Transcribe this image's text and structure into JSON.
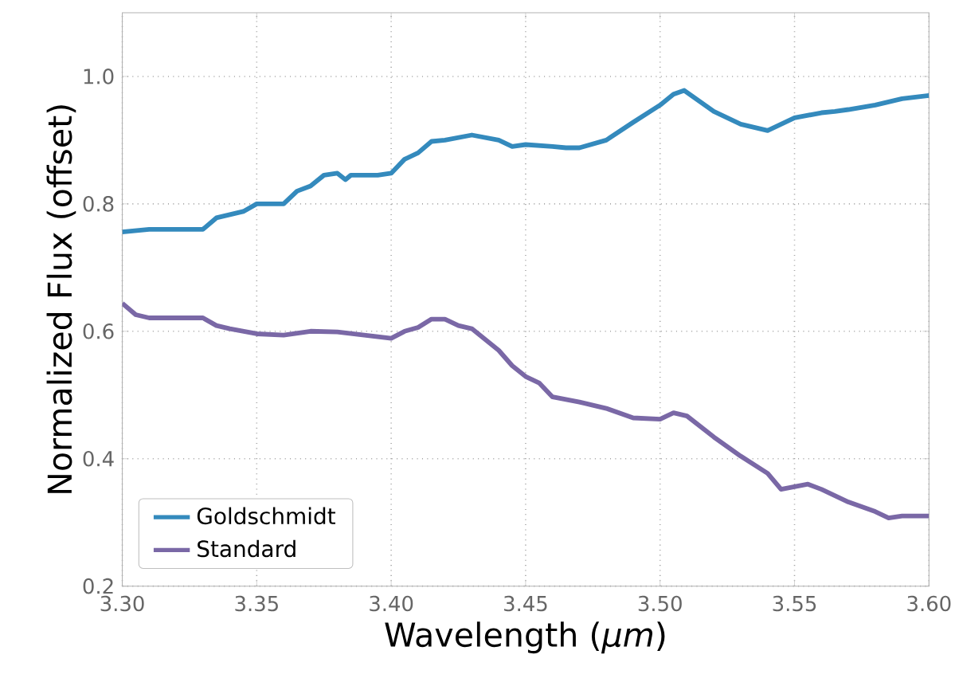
{
  "chart_data": {
    "type": "line",
    "xlabel": "Wavelength (*μm*)",
    "ylabel": "Normalized Flux (offset)",
    "xlim": [
      3.3,
      3.6
    ],
    "ylim": [
      0.2,
      1.1
    ],
    "xticks": [
      {
        "value": 3.3,
        "label": "3.30"
      },
      {
        "value": 3.35,
        "label": "3.35"
      },
      {
        "value": 3.4,
        "label": "3.40"
      },
      {
        "value": 3.45,
        "label": "3.45"
      },
      {
        "value": 3.5,
        "label": "3.50"
      },
      {
        "value": 3.55,
        "label": "3.55"
      },
      {
        "value": 3.6,
        "label": "3.60"
      }
    ],
    "yticks": [
      0.2,
      0.4,
      0.6,
      0.8,
      {
        "value": 1.0,
        "label": "1.0"
      }
    ],
    "grid": true,
    "legend": "bottom left",
    "marker": "none",
    "line_style": "solid",
    "series": [
      {
        "name": "Goldschmidt",
        "color": "#348abd",
        "x": [
          3.3,
          3.31,
          3.33,
          3.335,
          3.345,
          3.35,
          3.36,
          3.365,
          3.37,
          3.375,
          3.38,
          3.383,
          3.385,
          3.395,
          3.4,
          3.405,
          3.41,
          3.415,
          3.42,
          3.43,
          3.44,
          3.445,
          3.45,
          3.46,
          3.465,
          3.47,
          3.48,
          3.49,
          3.5,
          3.505,
          3.509,
          3.52,
          3.53,
          3.54,
          3.55,
          3.56,
          3.565,
          3.57,
          3.58,
          3.59,
          3.6
        ],
        "values": [
          0.756,
          0.76,
          0.76,
          0.778,
          0.788,
          0.8,
          0.8,
          0.82,
          0.828,
          0.845,
          0.848,
          0.838,
          0.845,
          0.845,
          0.848,
          0.87,
          0.88,
          0.898,
          0.9,
          0.908,
          0.9,
          0.89,
          0.893,
          0.89,
          0.888,
          0.888,
          0.9,
          0.928,
          0.955,
          0.972,
          0.978,
          0.945,
          0.925,
          0.915,
          0.935,
          0.943,
          0.945,
          0.948,
          0.955,
          0.965,
          0.97
        ]
      },
      {
        "name": "Standard",
        "color": "#7a68a6",
        "x": [
          3.3,
          3.305,
          3.31,
          3.33,
          3.335,
          3.34,
          3.35,
          3.36,
          3.37,
          3.38,
          3.39,
          3.4,
          3.405,
          3.41,
          3.415,
          3.42,
          3.425,
          3.43,
          3.44,
          3.445,
          3.45,
          3.455,
          3.46,
          3.47,
          3.475,
          3.48,
          3.49,
          3.5,
          3.505,
          3.51,
          3.52,
          3.53,
          3.54,
          3.545,
          3.555,
          3.56,
          3.57,
          3.58,
          3.585,
          3.59,
          3.6
        ],
        "values": [
          0.644,
          0.626,
          0.621,
          0.621,
          0.609,
          0.604,
          0.596,
          0.594,
          0.6,
          0.599,
          0.594,
          0.589,
          0.6,
          0.606,
          0.619,
          0.619,
          0.609,
          0.604,
          0.57,
          0.546,
          0.529,
          0.519,
          0.497,
          0.489,
          0.484,
          0.479,
          0.464,
          0.462,
          0.472,
          0.467,
          0.434,
          0.404,
          0.377,
          0.352,
          0.36,
          0.352,
          0.332,
          0.317,
          0.307,
          0.31,
          0.31
        ]
      }
    ]
  }
}
